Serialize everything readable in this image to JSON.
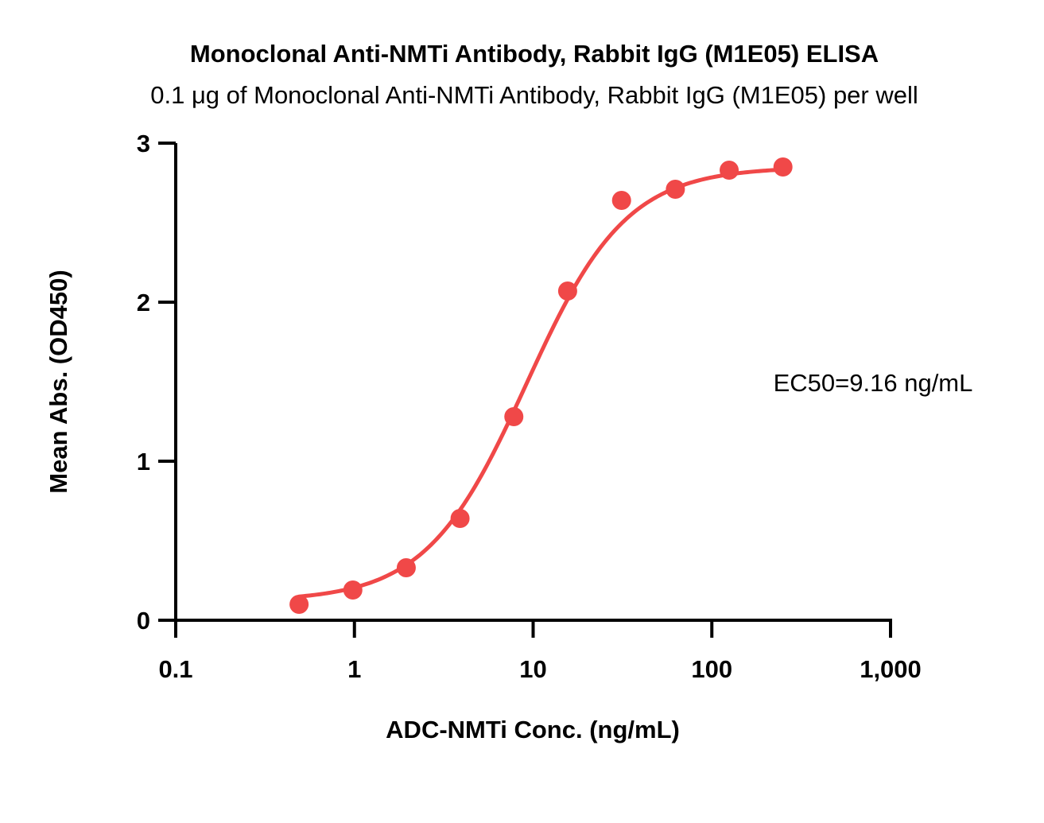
{
  "chart_data": {
    "type": "scatter",
    "title": "Monoclonal Anti-NMTi Antibody, Rabbit IgG (M1E05) ELISA",
    "subtitle": "0.1 μg of Monoclonal Anti-NMTi Antibody, Rabbit IgG (M1E05) per well",
    "xlabel": "ADC-NMTi Conc. (ng/mL)",
    "ylabel": "Mean Abs. (OD450)",
    "xscale": "log",
    "xlim": [
      0.1,
      1000
    ],
    "ylim": [
      0,
      3
    ],
    "x_ticks": [
      0.1,
      1,
      10,
      100,
      1000
    ],
    "x_tick_labels": [
      "0.1",
      "1",
      "10",
      "100",
      "1,000"
    ],
    "y_ticks": [
      0,
      1,
      2,
      3
    ],
    "y_tick_labels": [
      "0",
      "1",
      "2",
      "3"
    ],
    "grid": false,
    "series": [
      {
        "color": "#f04848",
        "x": [
          0.49,
          0.98,
          1.95,
          3.9,
          7.8,
          15.6,
          31.25,
          62.5,
          125,
          250
        ],
        "y": [
          0.1,
          0.19,
          0.33,
          0.64,
          1.28,
          2.07,
          2.64,
          2.71,
          2.83,
          2.85
        ]
      }
    ],
    "fit": {
      "model": "4PL",
      "color": "#f04848",
      "bottom": 0.12,
      "top": 2.85,
      "ec50": 9.16,
      "hill": 1.55,
      "x_range": [
        0.49,
        250
      ]
    },
    "annotations": [
      "EC50=9.16 ng/mL"
    ]
  }
}
